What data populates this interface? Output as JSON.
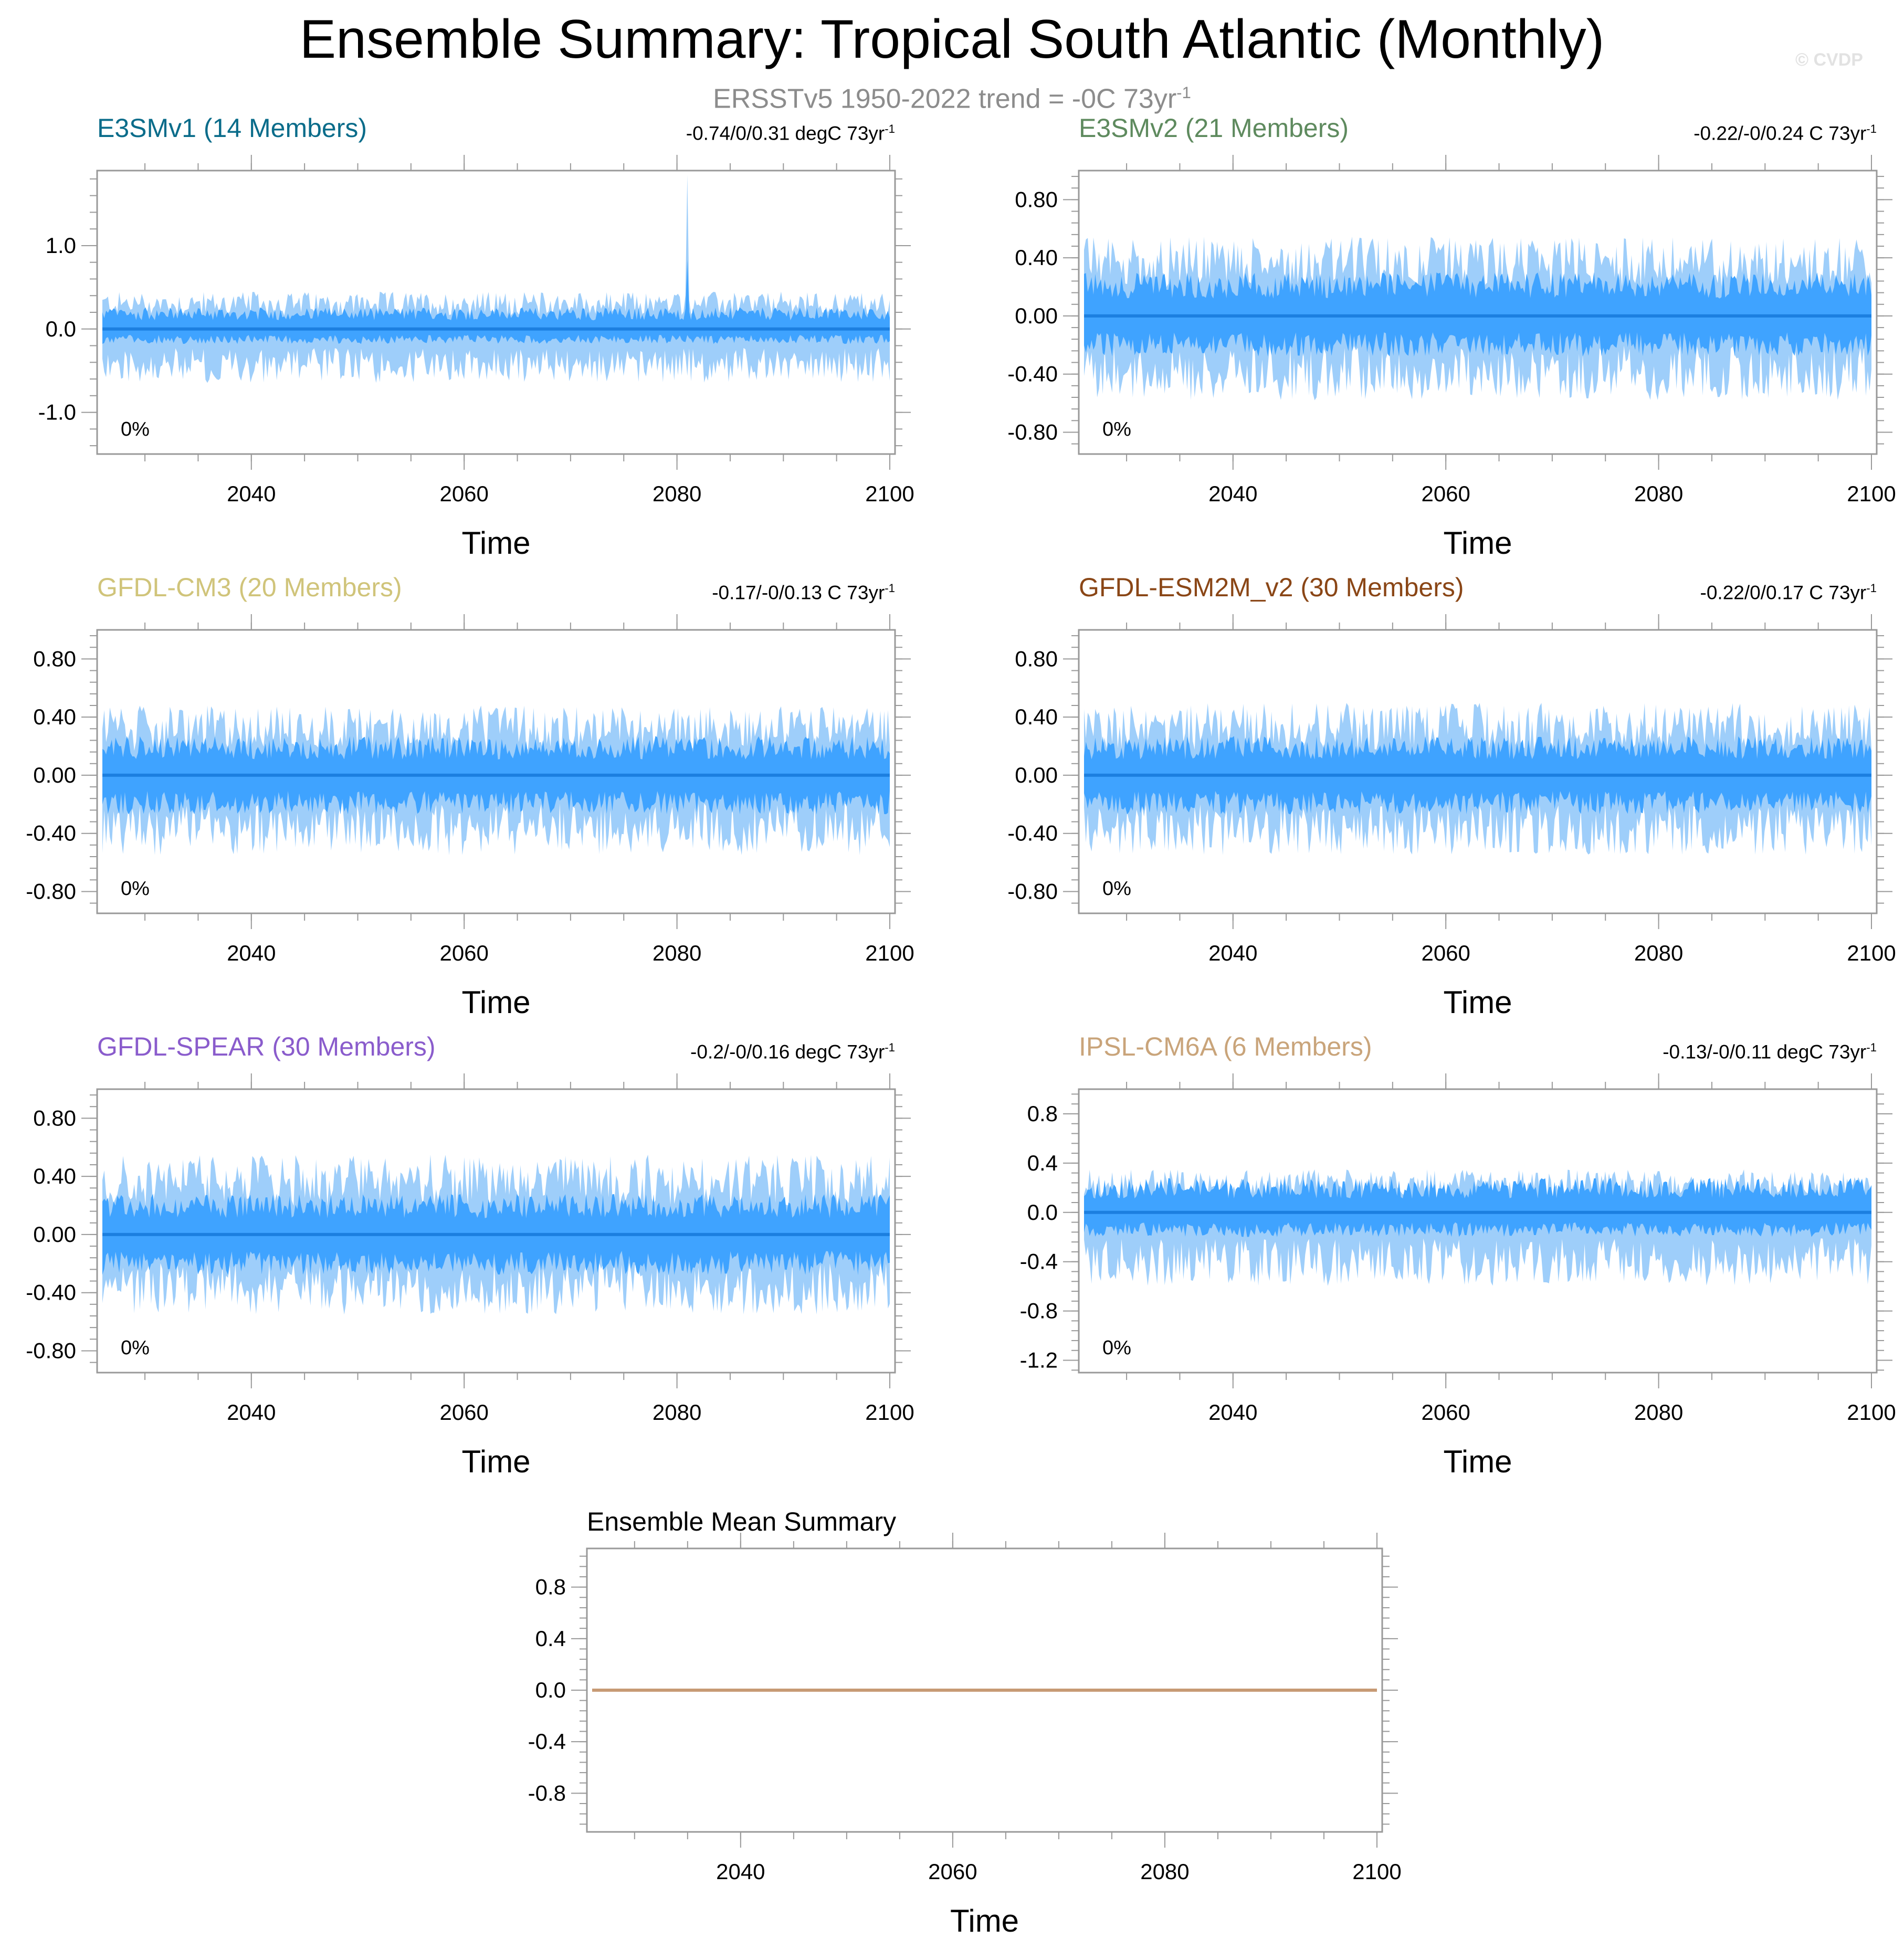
{
  "title": "Ensemble Summary: Tropical South Atlantic (Monthly)",
  "subtitle": {
    "text": "ERSSTv5 1950-2022 trend = -0C 73yr",
    "sup": "-1"
  },
  "watermark": "© CVDP",
  "colors": {
    "outer_band": "#9ecefa",
    "inner_band": "#3fa3ff",
    "mean_line": "#1c7fe0",
    "ensemble_mean_line": "#c79a74",
    "axis": "#999999"
  },
  "chart_data": [
    {
      "id": "e3smv1",
      "type": "area",
      "title": "E3SMv1 (14 Members)",
      "title_color": "#0a6c8a",
      "trend_text": "-0.74/0/0.31 degC 73yr",
      "trend_sup": "-1",
      "percent": "0%",
      "xlabel": "Time",
      "xlim": [
        2026,
        2100
      ],
      "xticks": [
        2040,
        2060,
        2080,
        2100
      ],
      "xtick_labels": [
        "2040",
        "2060",
        "2080",
        "2100"
      ],
      "ylim": [
        -1.5,
        1.9
      ],
      "yticks": [
        -1.0,
        0.0,
        1.0
      ],
      "ytick_labels": [
        "-1.0",
        "0.0",
        "1.0"
      ],
      "series": [
        {
          "x": [
            2026,
            2100
          ],
          "mean": [
            0,
            0
          ],
          "inner": [
            -0.18,
            0.26
          ],
          "outer": [
            -0.65,
            0.45
          ],
          "peak": {
            "x": 2081,
            "value": 1.85
          }
        }
      ]
    },
    {
      "id": "e3smv2",
      "type": "area",
      "title": "E3SMv2 (21 Members)",
      "title_color": "#5e8a5e",
      "trend_text": "-0.22/-0/0.24 C 73yr",
      "trend_sup": "-1",
      "percent": "0%",
      "xlabel": "Time",
      "xlim": [
        2026,
        2100
      ],
      "xticks": [
        2040,
        2060,
        2080,
        2100
      ],
      "xtick_labels": [
        "2040",
        "2060",
        "2080",
        "2100"
      ],
      "ylim": [
        -0.95,
        1.0
      ],
      "yticks": [
        -0.8,
        -0.4,
        0.0,
        0.4,
        0.8
      ],
      "ytick_labels": [
        "-0.80",
        "-0.40",
        "0.00",
        "0.40",
        "0.80"
      ],
      "series": [
        {
          "x": [
            2026,
            2100
          ],
          "mean": [
            0,
            0
          ],
          "inner": [
            -0.28,
            0.3
          ],
          "outer": [
            -0.58,
            0.55
          ]
        }
      ]
    },
    {
      "id": "gfdl-cm3",
      "type": "area",
      "title": "GFDL-CM3 (20 Members)",
      "title_color": "#d0c47a",
      "trend_text": "-0.17/-0/0.13 C 73yr",
      "trend_sup": "-1",
      "percent": "0%",
      "xlabel": "Time",
      "xlim": [
        2026,
        2100
      ],
      "xticks": [
        2040,
        2060,
        2080,
        2100
      ],
      "xtick_labels": [
        "2040",
        "2060",
        "2080",
        "2100"
      ],
      "ylim": [
        -0.95,
        1.0
      ],
      "yticks": [
        -0.8,
        -0.4,
        0.0,
        0.4,
        0.8
      ],
      "ytick_labels": [
        "-0.80",
        "-0.40",
        "0.00",
        "0.40",
        "0.80"
      ],
      "series": [
        {
          "x": [
            2026,
            2100
          ],
          "mean": [
            0,
            0
          ],
          "inner": [
            -0.27,
            0.27
          ],
          "outer": [
            -0.55,
            0.48
          ]
        }
      ]
    },
    {
      "id": "gfdl-esm2m",
      "type": "area",
      "title": "GFDL-ESM2M_v2 (30 Members)",
      "title_color": "#8a4616",
      "trend_text": "-0.22/0/0.17 C 73yr",
      "trend_sup": "-1",
      "percent": "0%",
      "xlabel": "Time",
      "xlim": [
        2026,
        2100
      ],
      "xticks": [
        2040,
        2060,
        2080,
        2100
      ],
      "xtick_labels": [
        "2040",
        "2060",
        "2080",
        "2100"
      ],
      "ylim": [
        -0.95,
        1.0
      ],
      "yticks": [
        -0.8,
        -0.4,
        0.0,
        0.4,
        0.8
      ],
      "ytick_labels": [
        "-0.80",
        "-0.40",
        "0.00",
        "0.40",
        "0.80"
      ],
      "series": [
        {
          "x": [
            2026,
            2100
          ],
          "mean": [
            0,
            0
          ],
          "inner": [
            -0.27,
            0.27
          ],
          "outer": [
            -0.55,
            0.5
          ]
        }
      ]
    },
    {
      "id": "gfdl-spear",
      "type": "area",
      "title": "GFDL-SPEAR (30 Members)",
      "title_color": "#8a5ccc",
      "trend_text": "-0.2/-0/0.16 degC 73yr",
      "trend_sup": "-1",
      "percent": "0%",
      "xlabel": "Time",
      "xlim": [
        2026,
        2100
      ],
      "xticks": [
        2040,
        2060,
        2080,
        2100
      ],
      "xtick_labels": [
        "2040",
        "2060",
        "2080",
        "2100"
      ],
      "ylim": [
        -0.95,
        1.0
      ],
      "yticks": [
        -0.8,
        -0.4,
        0.0,
        0.4,
        0.8
      ],
      "ytick_labels": [
        "-0.80",
        "-0.40",
        "0.00",
        "0.40",
        "0.80"
      ],
      "series": [
        {
          "x": [
            2026,
            2100
          ],
          "mean": [
            0,
            0
          ],
          "inner": [
            -0.28,
            0.28
          ],
          "outer": [
            -0.55,
            0.55
          ]
        }
      ]
    },
    {
      "id": "ipsl-cm6a",
      "type": "area",
      "title": "IPSL-CM6A (6 Members)",
      "title_color": "#c9a47a",
      "trend_text": "-0.13/-0/0.11 degC 73yr",
      "trend_sup": "-1",
      "percent": "0%",
      "xlabel": "Time",
      "xlim": [
        2026,
        2100
      ],
      "xticks": [
        2040,
        2060,
        2080,
        2100
      ],
      "xtick_labels": [
        "2040",
        "2060",
        "2080",
        "2100"
      ],
      "ylim": [
        -1.3,
        1.0
      ],
      "yticks": [
        -1.2,
        -0.8,
        -0.4,
        0.0,
        0.4,
        0.8
      ],
      "ytick_labels": [
        "-1.2",
        "-0.8",
        "-0.4",
        "0.0",
        "0.4",
        "0.8"
      ],
      "series": [
        {
          "x": [
            2026,
            2100
          ],
          "mean": [
            0,
            0
          ],
          "inner": [
            -0.2,
            0.28
          ],
          "outer": [
            -0.6,
            0.35
          ]
        }
      ]
    },
    {
      "id": "ensemble-mean",
      "type": "line",
      "title": "Ensemble Mean Summary",
      "title_color": "#000000",
      "xlabel": "Time",
      "xlim": [
        2026,
        2100
      ],
      "xticks": [
        2040,
        2060,
        2080,
        2100
      ],
      "xtick_labels": [
        "2040",
        "2060",
        "2080",
        "2100"
      ],
      "ylim": [
        -1.1,
        1.1
      ],
      "yticks": [
        -0.8,
        -0.4,
        0.0,
        0.4,
        0.8
      ],
      "ytick_labels": [
        "-0.8",
        "-0.4",
        "0.0",
        "0.4",
        "0.8"
      ],
      "series": [
        {
          "x": [
            2026,
            2100
          ],
          "mean": [
            0,
            0
          ]
        }
      ]
    }
  ]
}
